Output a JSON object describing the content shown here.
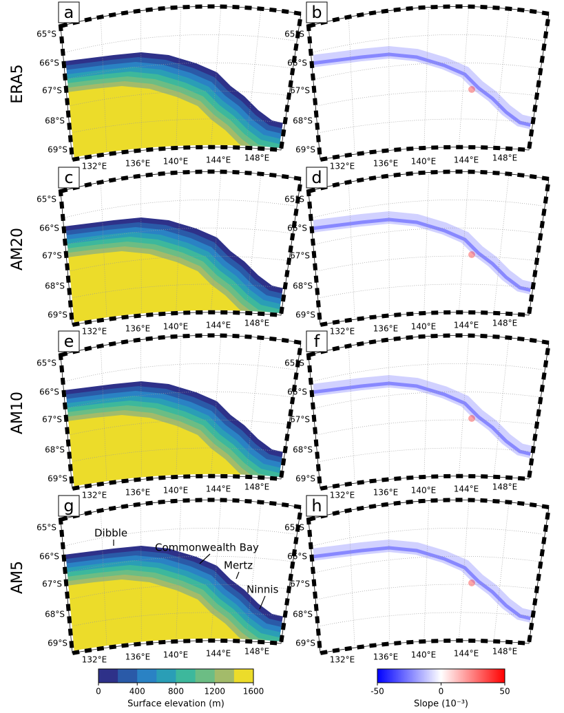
{
  "rows": [
    {
      "label": "ERA5",
      "panels": [
        "a",
        "b"
      ]
    },
    {
      "label": "AM20",
      "panels": [
        "c",
        "d"
      ]
    },
    {
      "label": "AM10",
      "panels": [
        "e",
        "f"
      ]
    },
    {
      "label": "AM5",
      "panels": [
        "g",
        "h"
      ]
    }
  ],
  "lat_labels": [
    "65°S",
    "66°S",
    "67°S",
    "68°S",
    "69°S"
  ],
  "lon_labels": [
    "132°E",
    "136°E",
    "140°E",
    "144°E",
    "148°E"
  ],
  "annotations": [
    "Dibble",
    "Commonwealth Bay",
    "Mertz",
    "Ninnis"
  ],
  "colorbars": [
    {
      "label": "Surface elevation (m)",
      "lim": [
        0,
        1600
      ],
      "ticks": [
        0,
        400,
        800,
        1200,
        1600
      ],
      "colors": [
        "#2e3189",
        "#2a5aa8",
        "#2a82c4",
        "#2a9eb6",
        "#3db89c",
        "#6cbd84",
        "#a3bb6a",
        "#ecdc2a"
      ]
    },
    {
      "label": "Slope (10⁻³)",
      "lim": [
        -50,
        50
      ],
      "ticks": [
        -50,
        0,
        50
      ],
      "colors": [
        "#0000ff",
        "#ffffff",
        "#ff0000"
      ]
    }
  ]
}
